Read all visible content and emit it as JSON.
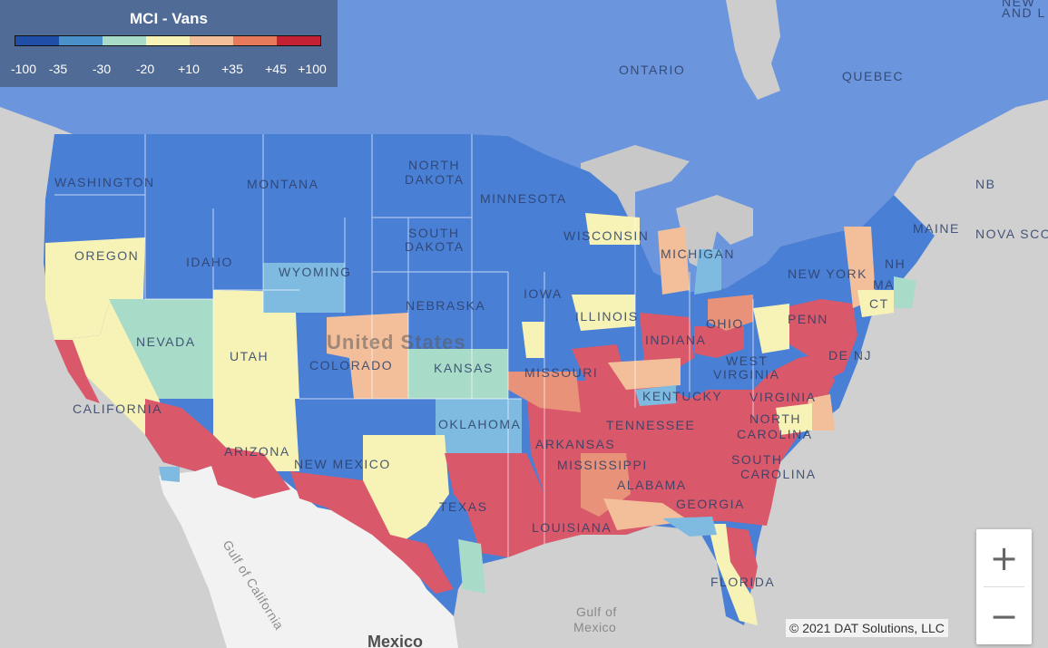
{
  "legend": {
    "title": "MCI - Vans",
    "colors": [
      "#1f4ea8",
      "#4a90c9",
      "#a8dcc8",
      "#f7f2b5",
      "#f2bf9a",
      "#e67a5a",
      "#c42134"
    ],
    "ticks": [
      "-100",
      "-35",
      "-30",
      "-20",
      "+10",
      "+35",
      "+45",
      "+100"
    ]
  },
  "map_labels": {
    "washington": "WASHINGTON",
    "oregon": "OREGON",
    "california": "CALIFORNIA",
    "nevada": "NEVADA",
    "idaho": "IDAHO",
    "montana": "MONTANA",
    "wyoming": "WYOMING",
    "utah": "UTAH",
    "arizona": "ARIZONA",
    "colorado": "COLORADO",
    "new_mexico": "NEW MEXICO",
    "north_dakota_1": "NORTH",
    "north_dakota_2": "DAKOTA",
    "south_dakota_1": "SOUTH",
    "south_dakota_2": "DAKOTA",
    "nebraska": "NEBRASKA",
    "kansas": "KANSAS",
    "oklahoma": "OKLAHOMA",
    "texas": "TEXAS",
    "minnesota": "MINNESOTA",
    "iowa": "IOWA",
    "missouri": "MISSOURI",
    "arkansas": "ARKANSAS",
    "louisiana": "LOUISIANA",
    "mississippi": "MISSISSIPPI",
    "alabama": "ALABAMA",
    "georgia": "GEORGIA",
    "florida": "FLORIDA",
    "wisconsin": "WISCONSIN",
    "illinois": "ILLINOIS",
    "indiana": "INDIANA",
    "michigan": "MICHIGAN",
    "ohio": "OHIO",
    "kentucky": "KENTUCKY",
    "tennessee": "TENNESSEE",
    "west_virginia_1": "WEST",
    "west_virginia_2": "VIRGINIA",
    "virginia": "VIRGINIA",
    "north_carolina_1": "NORTH",
    "north_carolina_2": "CAROLINA",
    "south_carolina_1": "SOUTH",
    "south_carolina_2": "CAROLINA",
    "pennsylvania": "PENN",
    "new_york": "NEW YORK",
    "de_nj": "DE NJ",
    "ct": "CT",
    "ma": "MA",
    "nh": "NH",
    "maine": "MAINE",
    "ontario": "ONTARIO",
    "quebec": "QUEBEC",
    "nb": "NB",
    "nova_scotia": "NOVA SCO",
    "new_foundland_1": "NEW",
    "new_foundland_2": "AND L",
    "united_states": "United States",
    "gulf_of_mexico_1": "Gulf of",
    "gulf_of_mexico_2": "Mexico",
    "gulf_of_california": "Gulf of California",
    "mexico": "Mexico"
  },
  "zoom": {
    "in_label": "+",
    "out_label": "−"
  },
  "attribution": "© 2021 DAT Solutions, LLC"
}
